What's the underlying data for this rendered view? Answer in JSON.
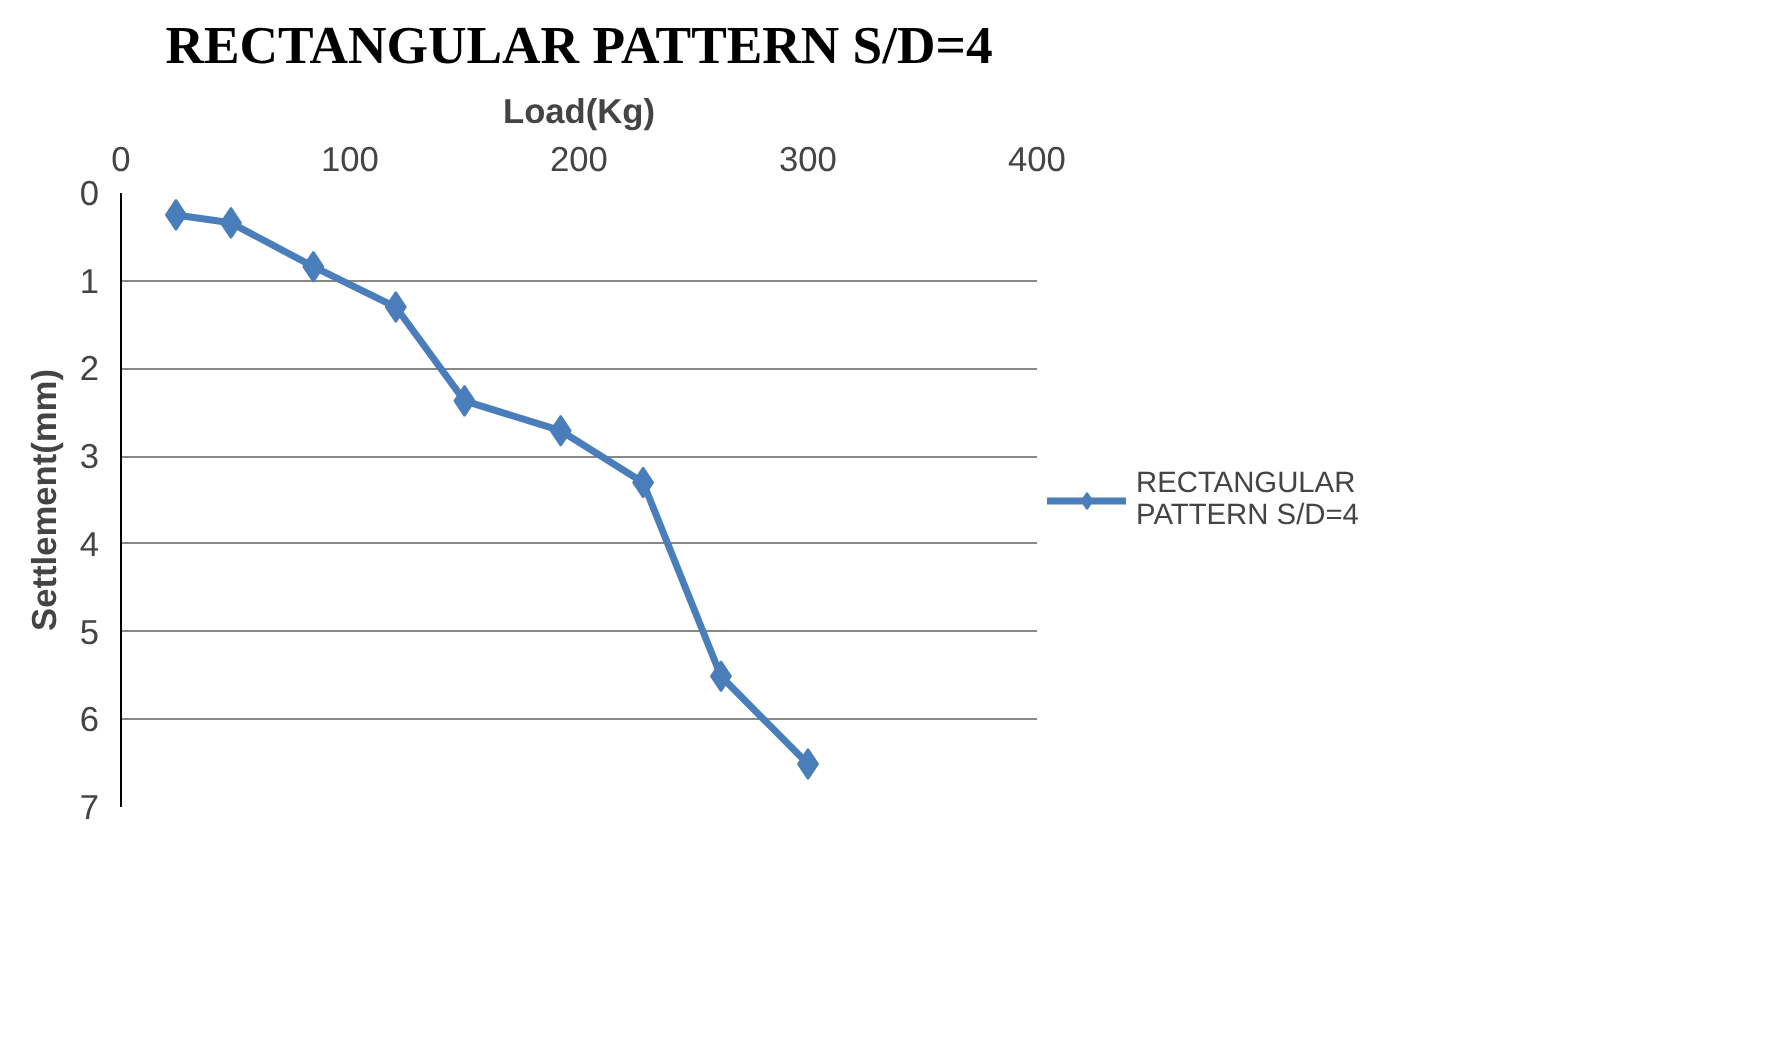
{
  "chart_data": {
    "type": "line",
    "title": "RECTANGULAR PATTERN S/D=4",
    "xlabel": "Load(Kg)",
    "ylabel": "Settlement(mm)",
    "x": [
      24,
      48,
      84,
      120,
      150,
      192,
      228,
      262,
      300
    ],
    "series": [
      {
        "name": "RECTANGULAR PATTERN S/D=4",
        "color": "#4a7ebb",
        "values": [
          0.25,
          0.34,
          0.84,
          1.3,
          2.37,
          2.71,
          3.3,
          5.51,
          6.51
        ]
      }
    ],
    "xlim": [
      0,
      400
    ],
    "xticks": [
      0,
      100,
      200,
      300,
      400
    ],
    "ylim": [
      7,
      0
    ],
    "yticks": [
      0,
      1,
      2,
      3,
      4,
      5,
      6,
      7
    ],
    "grid": "y",
    "legend": "right",
    "marker": "diamond",
    "line_style": "solid"
  }
}
